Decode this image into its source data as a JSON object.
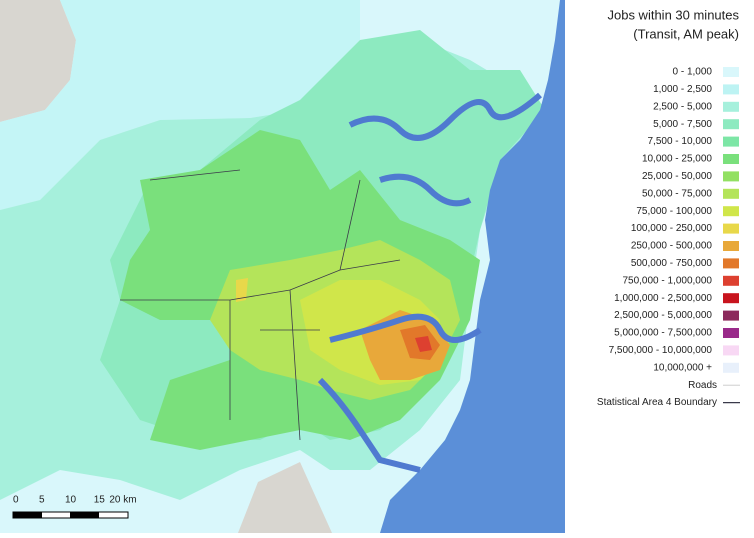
{
  "legend": {
    "title": [
      "Jobs within 30 minutes",
      "(Transit, AM peak)"
    ],
    "items": [
      {
        "label": "0 - 1,000",
        "color": "#d9f7fb"
      },
      {
        "label": "1,000 - 2,500",
        "color": "#bdf3f3"
      },
      {
        "label": "2,500 - 5,000",
        "color": "#a6f0dc"
      },
      {
        "label": "5,000 - 7,500",
        "color": "#8deac0"
      },
      {
        "label": "7,500 - 10,000",
        "color": "#7de6a6"
      },
      {
        "label": "10,000 - 25,000",
        "color": "#7ae07c"
      },
      {
        "label": "25,000 - 50,000",
        "color": "#92e062"
      },
      {
        "label": "50,000 - 75,000",
        "color": "#b4e45a"
      },
      {
        "label": "75,000 - 100,000",
        "color": "#d0e64a"
      },
      {
        "label": "100,000 - 250,000",
        "color": "#e8d84a"
      },
      {
        "label": "250,000 - 500,000",
        "color": "#e8a83a"
      },
      {
        "label": "500,000 - 750,000",
        "color": "#e2782a"
      },
      {
        "label": "750,000 - 1,000,000",
        "color": "#dd4030"
      },
      {
        "label": "1,000,000 - 2,500,000",
        "color": "#c8141e"
      },
      {
        "label": "2,500,000 - 5,000,000",
        "color": "#8c2a5c"
      },
      {
        "label": "5,000,000 - 7,500,000",
        "color": "#9a2a8a"
      },
      {
        "label": "7,500,000 - 10,000,000",
        "color": "#f8d8f4"
      },
      {
        "label": "10,000,000 +",
        "color": "#e8f0fb"
      }
    ],
    "lines": [
      {
        "label": "Roads",
        "color": "#c8c8c8"
      },
      {
        "label": "Statistical Area 4 Boundary",
        "color": "#3a3a4a"
      }
    ]
  },
  "scale_bar": {
    "labels": [
      "0",
      "5",
      "10",
      "15",
      "20 km"
    ]
  }
}
